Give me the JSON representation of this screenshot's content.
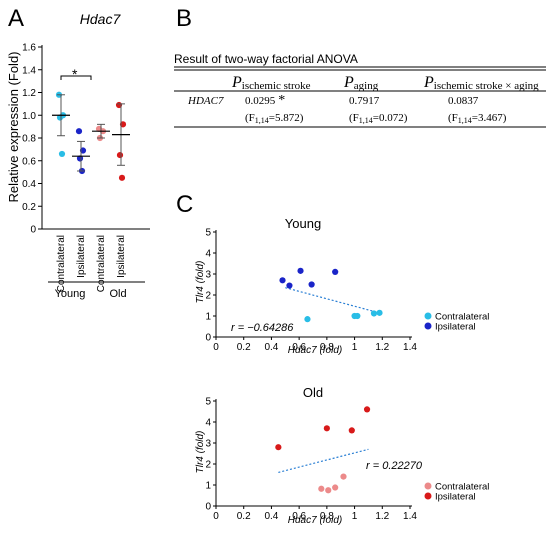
{
  "panels": {
    "a": "A",
    "b": "B",
    "c": "C"
  },
  "colors": {
    "contralateral": "#29bde6",
    "ipsilateral": "#1a24c8",
    "old_contralateral": "#ec8a8a",
    "old_ipsilateral": "#d81a1a",
    "trend": "#2a7fd4",
    "error": "#555555"
  },
  "panel_a": {
    "sig_marker": "*",
    "group_young": "Young",
    "group_old": "Old"
  },
  "panel_b": {
    "title": "Result of two-way factorial ANOVA",
    "p_letter": "P",
    "col1_sub": "ischemic stroke",
    "col2_sub": "aging",
    "col3_sub": "ischemic stroke × aging",
    "gene": "HDAC7",
    "val1": "0.0295",
    "val1_star": "*",
    "val2": "0.7917",
    "val3": "0.0837",
    "f_letter": "F",
    "f_sub": "1,14",
    "f1": "=5.872)",
    "f2": "=0.072)",
    "f3": "=3.467)"
  },
  "chart_data": [
    {
      "type": "scatter",
      "title": "Hdac7",
      "ylabel": "Relative expression (Fold)",
      "ylim": [
        0,
        1.6
      ],
      "yticks": [
        "0",
        "0.2",
        "0.4",
        "0.6",
        "0.8",
        "1.0",
        "1.2",
        "1.4",
        "1.6"
      ],
      "categories": [
        "Contralateral",
        "Ipsilateral",
        "Contralateral",
        "Ipsilateral"
      ],
      "series": [
        {
          "name": "Contralateral",
          "values": [
            1.18,
            1.0,
            0.98,
            0.66
          ],
          "mean": 1.0,
          "error": 0.18
        },
        {
          "name": "Ipsilateral",
          "values": [
            0.86,
            0.69,
            0.62,
            0.51
          ],
          "mean": 0.64,
          "error": 0.13
        },
        {
          "name": "Contralateral",
          "values": [
            0.88,
            0.86,
            0.8
          ],
          "mean": 0.86,
          "error": 0.06
        },
        {
          "name": "Ipsilateral",
          "values": [
            1.09,
            0.92,
            0.65,
            0.45
          ],
          "mean": 0.83,
          "error": 0.27
        }
      ]
    },
    {
      "type": "scatter",
      "title": "Young",
      "xlabel": "Hdac7 (fold)",
      "ylabel": "Tlr4 (fold)",
      "xlim": [
        0,
        1.4
      ],
      "ylim": [
        0,
        5
      ],
      "xticks": [
        "0",
        "0.2",
        "0.4",
        "0.6",
        "0.8",
        "1",
        "1.2",
        "1.4"
      ],
      "yticks": [
        "0",
        "1",
        "2",
        "3",
        "4",
        "5"
      ],
      "annotation": "r = −0.64286",
      "trend": {
        "x": [
          0.5,
          1.15
        ],
        "y": [
          2.35,
          1.2
        ]
      },
      "series": [
        {
          "name": "Contralateral",
          "x": [
            0.66,
            1.0,
            1.02,
            1.14,
            1.18
          ],
          "y": [
            0.85,
            1.0,
            1.0,
            1.12,
            1.15
          ]
        },
        {
          "name": "Ipsilateral",
          "x": [
            0.48,
            0.53,
            0.61,
            0.69,
            0.86
          ],
          "y": [
            2.7,
            2.45,
            3.15,
            2.5,
            3.1
          ]
        }
      ]
    },
    {
      "type": "scatter",
      "title": "Old",
      "xlabel": "Hdac7 (fold)",
      "ylabel": "Tlr4 (fold)",
      "xlim": [
        0,
        1.4
      ],
      "ylim": [
        0,
        5
      ],
      "xticks": [
        "0",
        "0.2",
        "0.4",
        "0.6",
        "0.8",
        "1",
        "1.2",
        "1.4"
      ],
      "yticks": [
        "0",
        "1",
        "2",
        "3",
        "4",
        "5"
      ],
      "annotation": "r = 0.22270",
      "trend": {
        "x": [
          0.45,
          1.1
        ],
        "y": [
          1.6,
          2.7
        ]
      },
      "series": [
        {
          "name": "Contralateral",
          "x": [
            0.76,
            0.81,
            0.86,
            0.92
          ],
          "y": [
            0.82,
            0.75,
            0.88,
            1.4
          ]
        },
        {
          "name": "Ipsilateral",
          "x": [
            0.45,
            0.8,
            0.98,
            1.09
          ],
          "y": [
            2.8,
            3.7,
            3.6,
            4.6
          ]
        }
      ]
    }
  ]
}
